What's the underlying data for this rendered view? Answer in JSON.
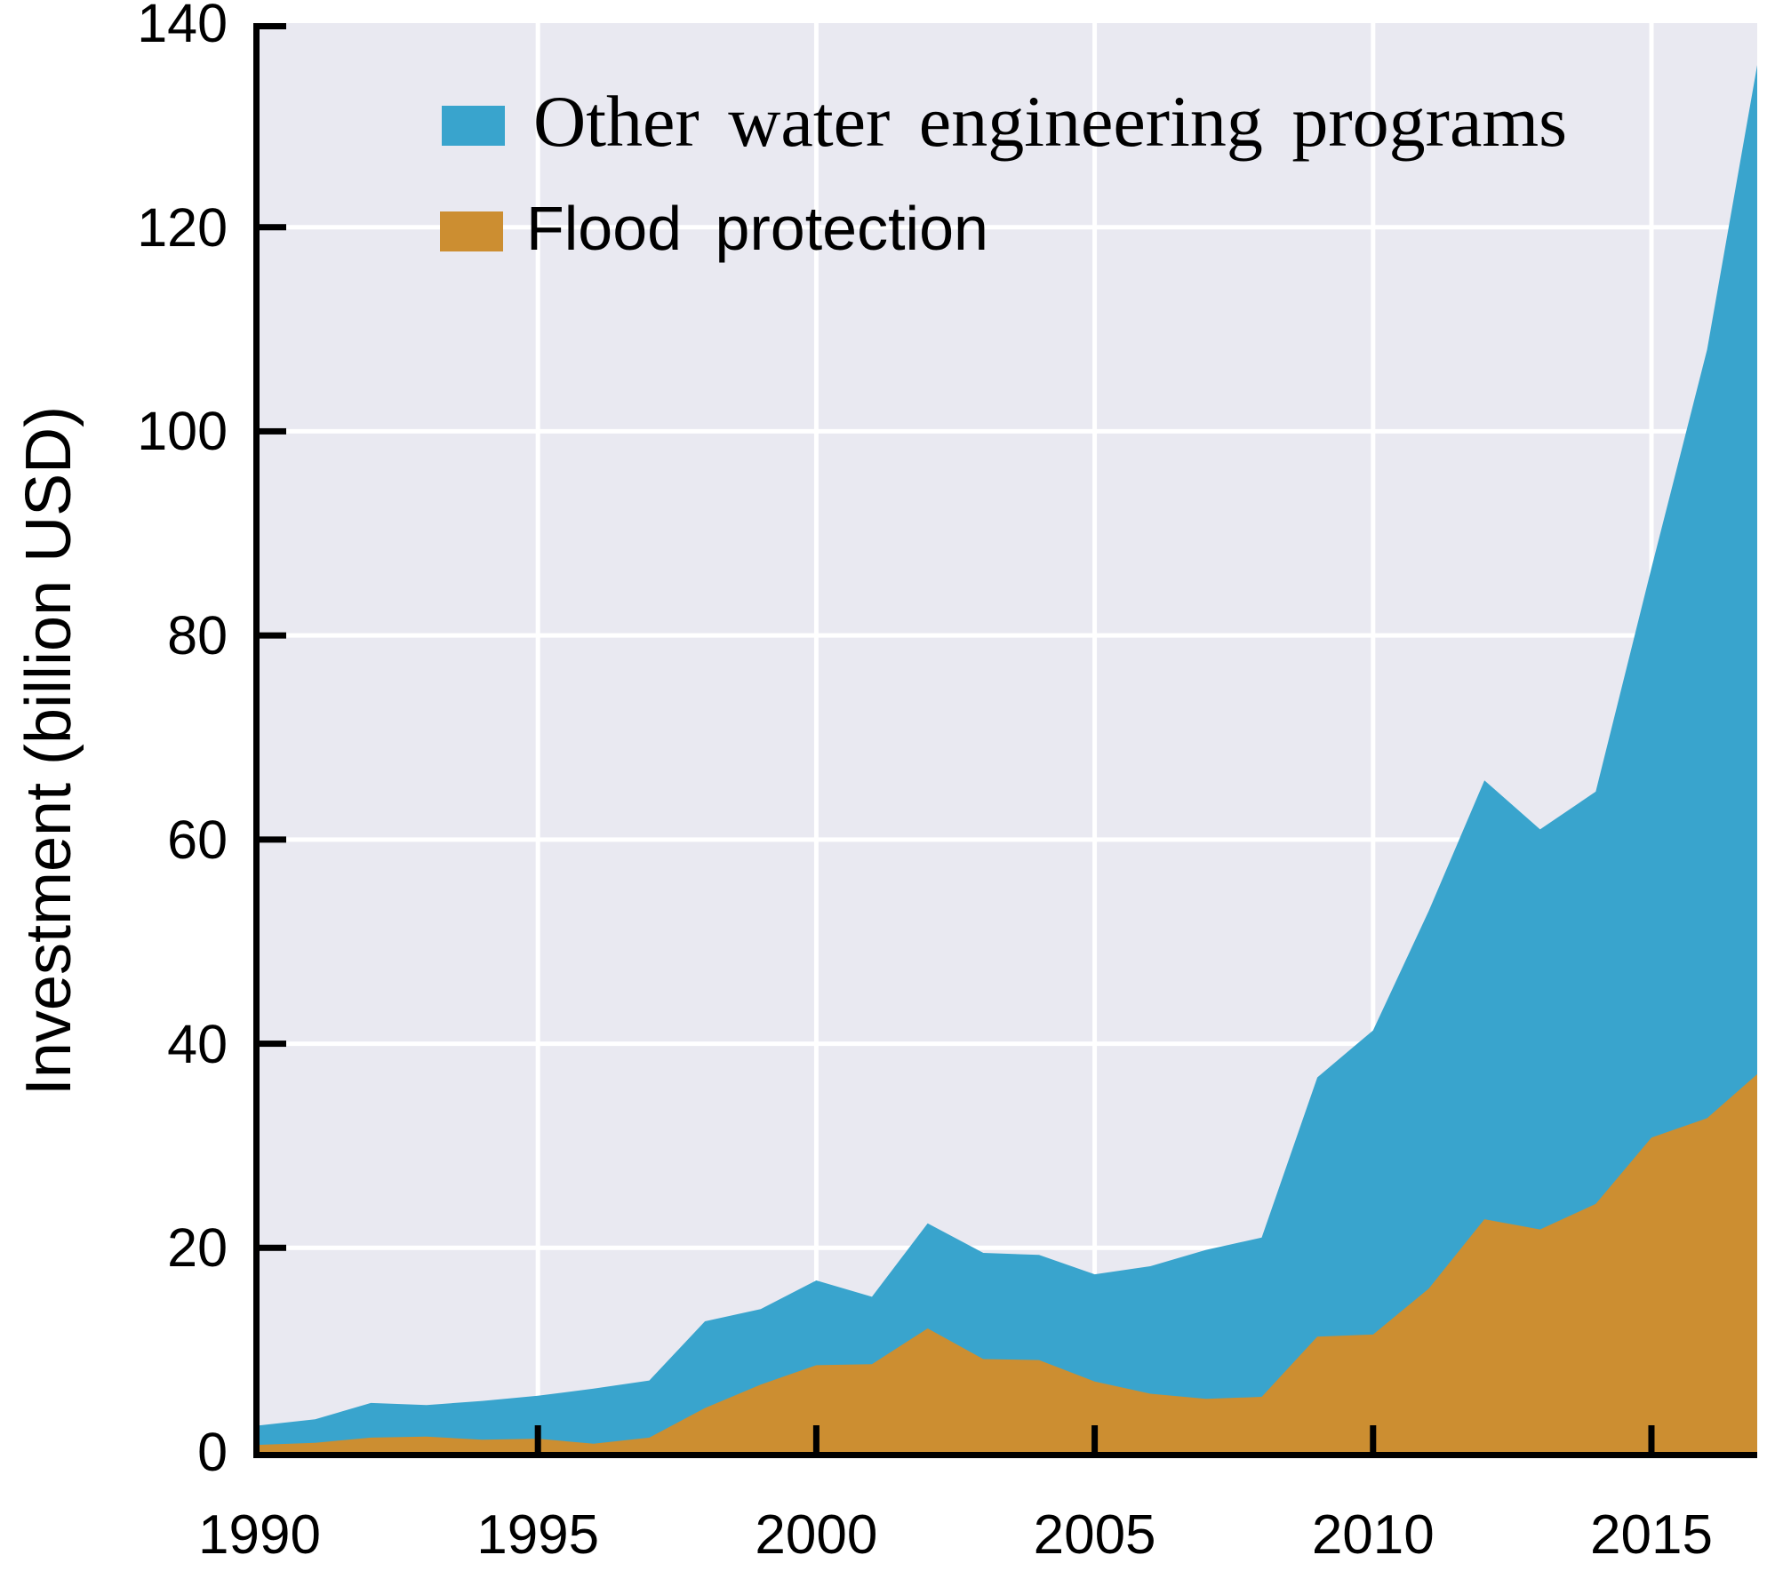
{
  "figure": {
    "kind": "stacked area chart",
    "background_color": "#ffffff"
  },
  "plot": {
    "background_color": "#E9E9F1",
    "gridline_color": "#ffffff",
    "spine_color": "#000000"
  },
  "y_axis": {
    "label": "Investment (billion USD)",
    "tick_labels": [
      "0",
      "20",
      "40",
      "60",
      "80",
      "100",
      "120",
      "140"
    ],
    "tick_values": [
      0,
      20,
      40,
      60,
      80,
      100,
      120,
      140
    ],
    "range": [
      0,
      140
    ]
  },
  "x_axis": {
    "label": "",
    "tick_labels": [
      "1990",
      "1995",
      "2000",
      "2005",
      "2010",
      "2015"
    ],
    "tick_values": [
      1990,
      1995,
      2000,
      2005,
      2010,
      2015
    ],
    "range": [
      1990,
      2016.9
    ]
  },
  "legend": [
    {
      "label": "Other water engineering programs",
      "color": "#39A4CD"
    },
    {
      "label": "Flood protection",
      "color": "#CC8E31"
    }
  ],
  "chart_data": {
    "type": "area",
    "stacked": true,
    "title": "",
    "xlabel": "",
    "ylabel": "Investment (billion USD)",
    "x": [
      1990,
      1991,
      1992,
      1993,
      1994,
      1995,
      1996,
      1997,
      1998,
      1999,
      2000,
      2001,
      2002,
      2003,
      2004,
      2005,
      2006,
      2007,
      2008,
      2009,
      2010,
      2011,
      2012,
      2013,
      2014,
      2015,
      2016,
      2017
    ],
    "series": [
      {
        "name": "Flood protection",
        "color": "#CC8E31",
        "values": [
          0.7,
          0.9,
          1.4,
          1.5,
          1.2,
          1.3,
          0.8,
          1.4,
          4.3,
          6.6,
          8.5,
          8.6,
          12.1,
          9.1,
          9.0,
          6.9,
          5.7,
          5.2,
          5.4,
          11.3,
          11.5,
          16.0,
          22.8,
          21.8,
          24.3,
          30.8,
          32.7,
          37.5
        ]
      },
      {
        "name": "Other water engineering programs",
        "color": "#39A4CD",
        "values": [
          1.9,
          2.3,
          3.4,
          3.1,
          3.8,
          4.2,
          5.4,
          5.6,
          8.5,
          7.4,
          8.3,
          6.6,
          10.3,
          10.4,
          10.3,
          10.5,
          12.5,
          14.6,
          15.6,
          25.4,
          29.8,
          37.0,
          43.0,
          39.2,
          40.4,
          55.8,
          75.3,
          101.5
        ]
      }
    ],
    "totals": [
      2.6,
      3.2,
      4.8,
      4.6,
      5.0,
      5.5,
      6.2,
      7.0,
      12.8,
      14.0,
      16.8,
      15.2,
      22.4,
      19.5,
      19.3,
      17.4,
      18.2,
      19.8,
      21.0,
      36.7,
      41.3,
      53.0,
      65.8,
      61.0,
      64.7,
      86.6,
      108.0,
      139.0
    ],
    "xlim": [
      1990,
      2016.9
    ],
    "ylim": [
      0,
      140
    ],
    "grid": true,
    "gridlines_below_data": true,
    "legend_position": "upper left",
    "note": "last data point (2017) is clipped by the right edge of the axes at x = 2016.9, visible apex ~136"
  }
}
